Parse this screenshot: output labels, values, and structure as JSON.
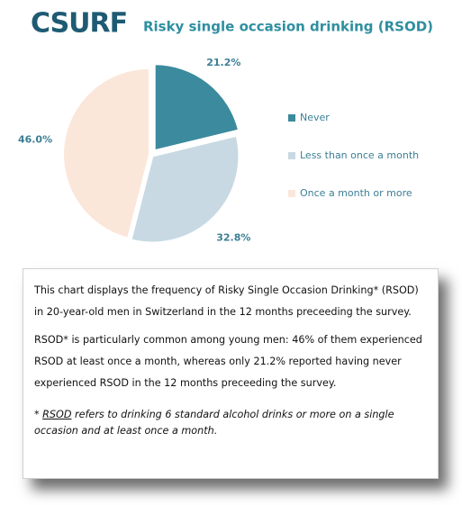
{
  "logo": "CSURF",
  "chart_data": {
    "type": "pie",
    "title": "Risky single occasion drinking (RSOD)",
    "categories": [
      "Never",
      "Less than once a month",
      "Once a month or more"
    ],
    "values": [
      21.2,
      32.8,
      46.0
    ],
    "value_labels": [
      "21.2%",
      "32.8%",
      "46.0%"
    ],
    "colors": [
      "#3c8a9d",
      "#c8d9e3",
      "#fbe7da"
    ],
    "label_color": "#3c7f95",
    "legend": "right"
  },
  "description": {
    "paragraphs": [
      "This chart displays the frequency of Risky Single Occasion Drinking* (RSOD) in 20-year-old men in Switzerland in the 12 months preceeding the survey.",
      "RSOD* is particularly common among young men: 46% of them experienced RSOD at least once a month, whereas only 21.2% reported having never experienced RSOD in the 12 months preceeding the survey."
    ],
    "note": {
      "marker": "*",
      "term": "RSOD",
      "text": "refers to drinking 6 standard alcohol drinks or more on a single occasion and at least once a month."
    }
  }
}
